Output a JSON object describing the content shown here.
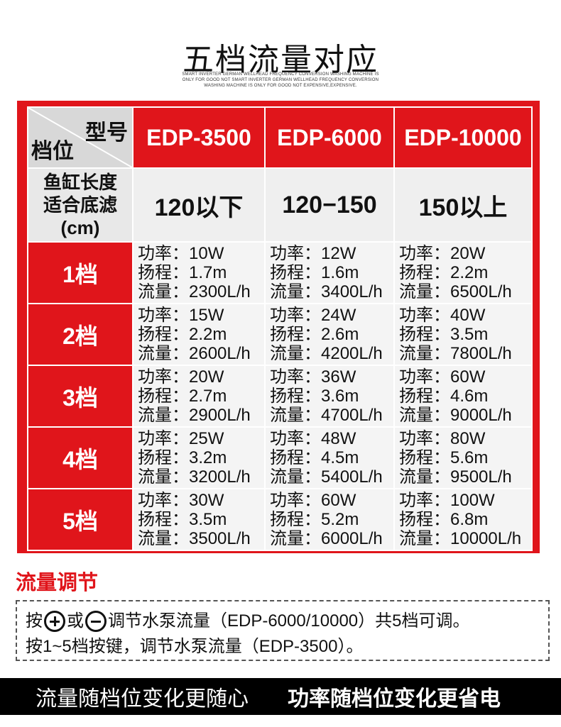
{
  "title": "五档流量对应",
  "subtitle_lines": [
    "SMART INVERTER GERMAN WELLHEAD FREQUENCY CONVERSION WASHING MACHINE IS",
    "ONLY FOR GOOD NOT SMART INVERTER GERMAN WELLHEAD FREQUENCY CONVERSION",
    "WASHING MACHINE IS ONLY FOR GOOD NOT EXPENSIVE,EXPENSIVE."
  ],
  "table": {
    "corner_top": "型号",
    "corner_bottom": "档位",
    "models": [
      "EDP-3500",
      "EDP-6000",
      "EDP-10000"
    ],
    "tank_label_lines": [
      "鱼缸长度",
      "适合底滤",
      "(cm)"
    ],
    "tank_values": [
      "120以下",
      "120−150",
      "150以上"
    ],
    "rows": [
      {
        "gear": "1档",
        "cells": [
          [
            "功率：10W",
            "扬程：1.7m",
            "流量：2300L/h"
          ],
          [
            "功率：12W",
            "扬程：1.6m",
            "流量：3400L/h"
          ],
          [
            "功率：20W",
            "扬程：2.2m",
            "流量：6500L/h"
          ]
        ]
      },
      {
        "gear": "2档",
        "cells": [
          [
            "功率：15W",
            "扬程：2.2m",
            "流量：2600L/h"
          ],
          [
            "功率：24W",
            "扬程：2.6m",
            "流量：4200L/h"
          ],
          [
            "功率：40W",
            "扬程：3.5m",
            "流量：7800L/h"
          ]
        ]
      },
      {
        "gear": "3档",
        "cells": [
          [
            "功率：20W",
            "扬程：2.7m",
            "流量：2900L/h"
          ],
          [
            "功率：36W",
            "扬程：3.6m",
            "流量：4700L/h"
          ],
          [
            "功率：60W",
            "扬程：4.6m",
            "流量：9000L/h"
          ]
        ]
      },
      {
        "gear": "4档",
        "cells": [
          [
            "功率：25W",
            "扬程：3.2m",
            "流量：3200L/h"
          ],
          [
            "功率：48W",
            "扬程：4.5m",
            "流量：5400L/h"
          ],
          [
            "功率：80W",
            "扬程：5.6m",
            "流量：9500L/h"
          ]
        ]
      },
      {
        "gear": "5档",
        "cells": [
          [
            "功率：30W",
            "扬程：3.5m",
            "流量：3500L/h"
          ],
          [
            "功率：60W",
            "扬程：5.2m",
            "流量：6000L/h"
          ],
          [
            "功率：100W",
            "扬程：6.8m",
            "流量：10000L/h"
          ]
        ]
      }
    ]
  },
  "adjust": {
    "heading": "流量调节",
    "line1_prefix": "按",
    "line1_or": "或",
    "line1_suffix": "调节水泵流量（EDP-6000/10000）共5档可调。",
    "line2": "按1~5档按键，调节水泵流量（EDP-3500）。",
    "plus_icon": "plus-circle-icon",
    "minus_icon": "minus-circle-icon"
  },
  "footer": {
    "left": "流量随档位变化更随心",
    "right": "功率随档位变化更省电"
  },
  "colors": {
    "accent": "#e0151b",
    "footer_bg": "#000000"
  }
}
